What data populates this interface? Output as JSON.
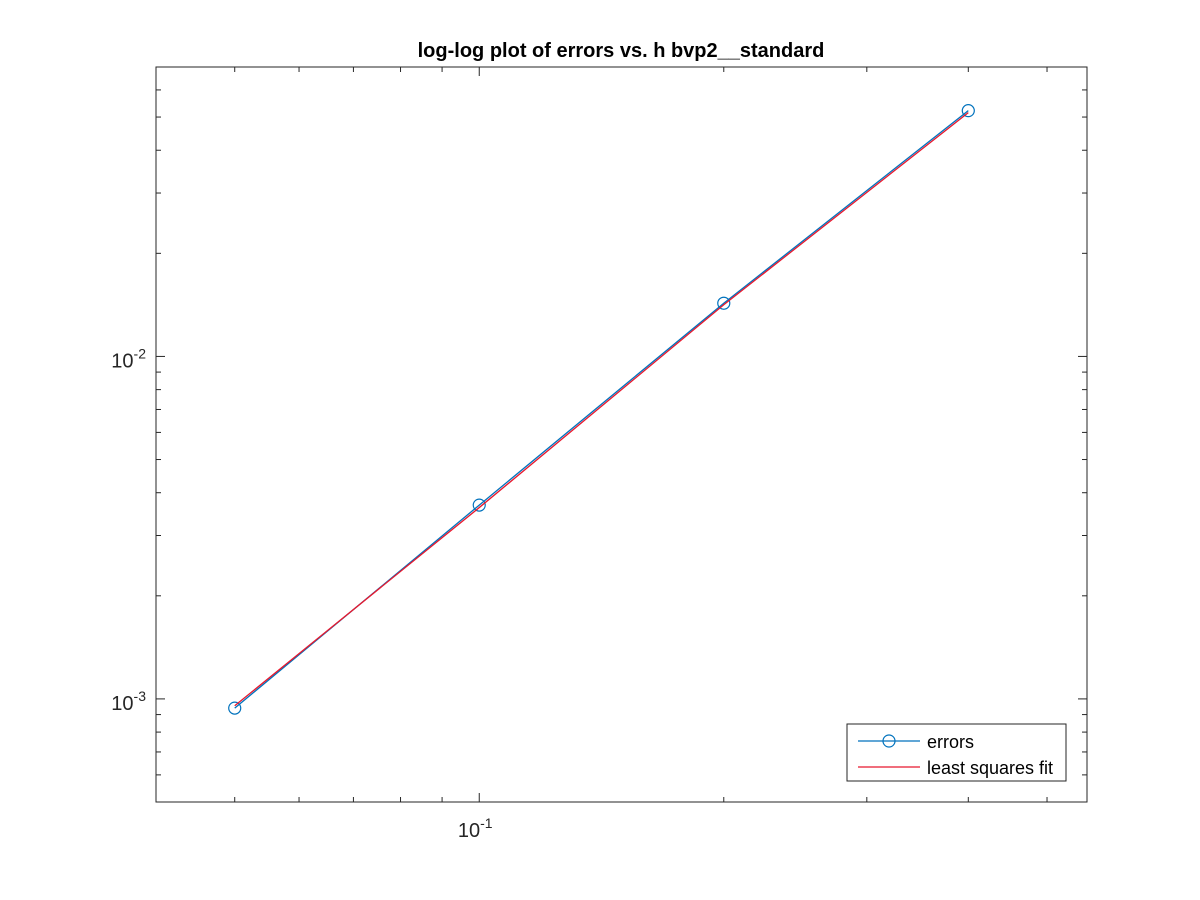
{
  "chart_data": {
    "type": "line",
    "title": "log-log plot of errors vs. h bvp2__standard",
    "xlabel": "",
    "ylabel": "",
    "xscale": "log",
    "yscale": "log",
    "xlim": [
      0.04,
      0.56
    ],
    "ylim": [
      0.0005,
      0.07
    ],
    "x_ticks": [
      {
        "value": 0.1,
        "base": "10",
        "exp": "-1"
      }
    ],
    "y_ticks": [
      {
        "value": 0.01,
        "base": "10",
        "exp": "-2"
      },
      {
        "value": 0.001,
        "base": "10",
        "exp": "-3"
      }
    ],
    "grid": false,
    "box": true,
    "legend_position": "bottom-right",
    "series": [
      {
        "name": "errors",
        "color": "#0072BD",
        "marker": "circle",
        "x": [
          0.05,
          0.1,
          0.2,
          0.4
        ],
        "y": [
          0.00094,
          0.00368,
          0.0143,
          0.0522
        ]
      },
      {
        "name": "least squares fit",
        "color": "#e8182d",
        "marker": "none",
        "x": [
          0.05,
          0.1,
          0.2,
          0.4
        ],
        "y": [
          0.000955,
          0.00362,
          0.01415,
          0.0515
        ]
      }
    ]
  }
}
